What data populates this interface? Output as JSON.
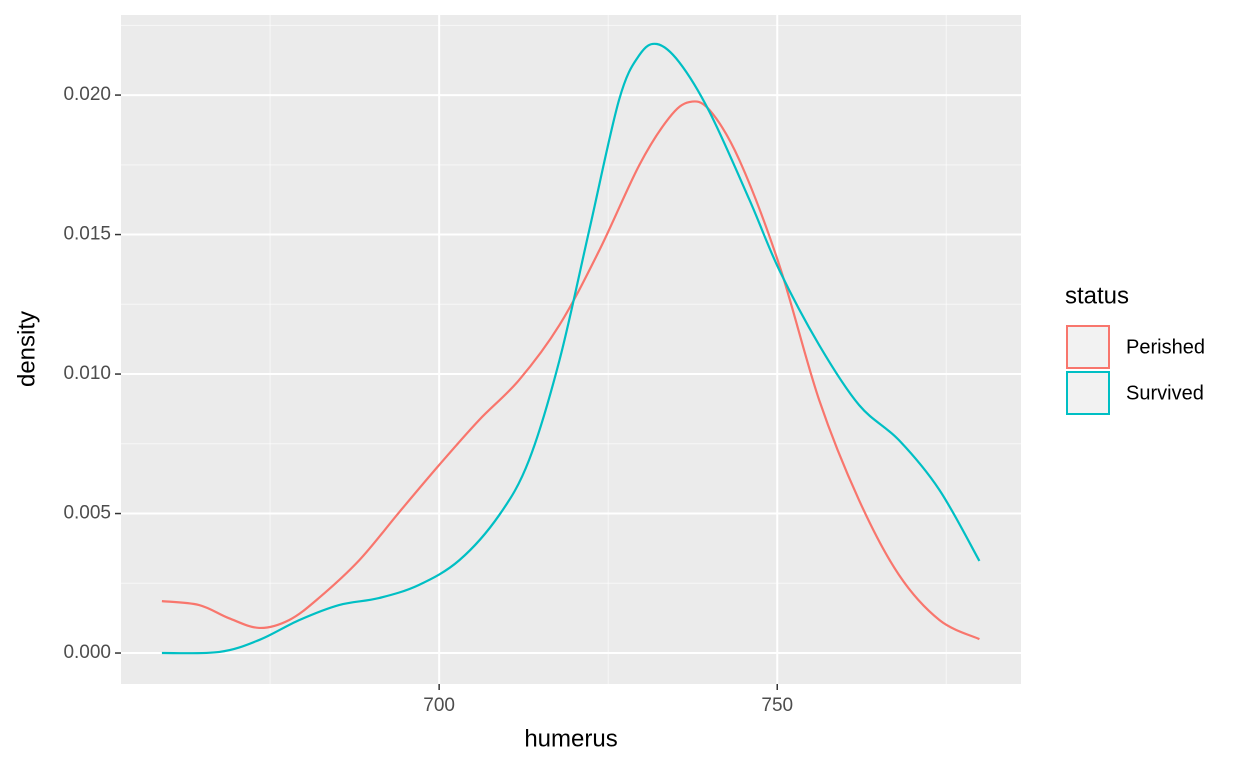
{
  "chart_data": {
    "type": "line",
    "x_label": "humerus",
    "y_label": "density",
    "legend_title": "status",
    "legend_position": "right",
    "grid": true,
    "xlim": [
      652.95,
      786.05
    ],
    "ylim": [
      -0.00111,
      0.02287
    ],
    "xticks": [
      700,
      750
    ],
    "xminor": [
      675,
      725,
      775
    ],
    "yticks": [
      {
        "value": 0,
        "label": "0.000"
      },
      {
        "value": 0.005,
        "label": "0.005"
      },
      {
        "value": 0.01,
        "label": "0.010"
      },
      {
        "value": 0.015,
        "label": "0.015"
      },
      {
        "value": 0.02,
        "label": "0.020"
      }
    ],
    "yminor": [
      0.0025,
      0.0075,
      0.0125,
      0.0175,
      0.0225
    ],
    "series": [
      {
        "name": "Perished",
        "color": "#F8766D",
        "x": [
          659,
          664.5,
          668.9,
          673.4,
          677.8,
          682.2,
          688.2,
          694.1,
          700,
          705.9,
          711.8,
          717.8,
          723.7,
          729.6,
          734,
          737,
          740,
          744.4,
          750.3,
          756.2,
          762.1,
          768,
          774,
          779.9
        ],
        "values": [
          0.00186,
          0.00172,
          0.00125,
          0.0009,
          0.00118,
          0.00197,
          0.00333,
          0.00505,
          0.00674,
          0.00835,
          0.00978,
          0.01176,
          0.01444,
          0.01749,
          0.01918,
          0.01975,
          0.01946,
          0.01767,
          0.01391,
          0.00907,
          0.00548,
          0.0028,
          0.00118,
          0.0005
        ]
      },
      {
        "name": "Survived",
        "color": "#00BFC4",
        "x": [
          659,
          667.5,
          673.4,
          679.3,
          685.2,
          691.1,
          697,
          703,
          708.9,
          713.3,
          717.8,
          722.2,
          726.6,
          729.6,
          732.2,
          735.5,
          740,
          745.9,
          750.3,
          756.2,
          762.1,
          768,
          774,
          779.9
        ],
        "values": [
          0,
          4e-05,
          0.00047,
          0.00118,
          0.00172,
          0.00197,
          0.00244,
          0.00333,
          0.00495,
          0.00692,
          0.0105,
          0.01516,
          0.01982,
          0.02143,
          0.02183,
          0.02118,
          0.01939,
          0.01624,
          0.01373,
          0.01104,
          0.00889,
          0.00763,
          0.00584,
          0.0033
        ]
      }
    ]
  }
}
